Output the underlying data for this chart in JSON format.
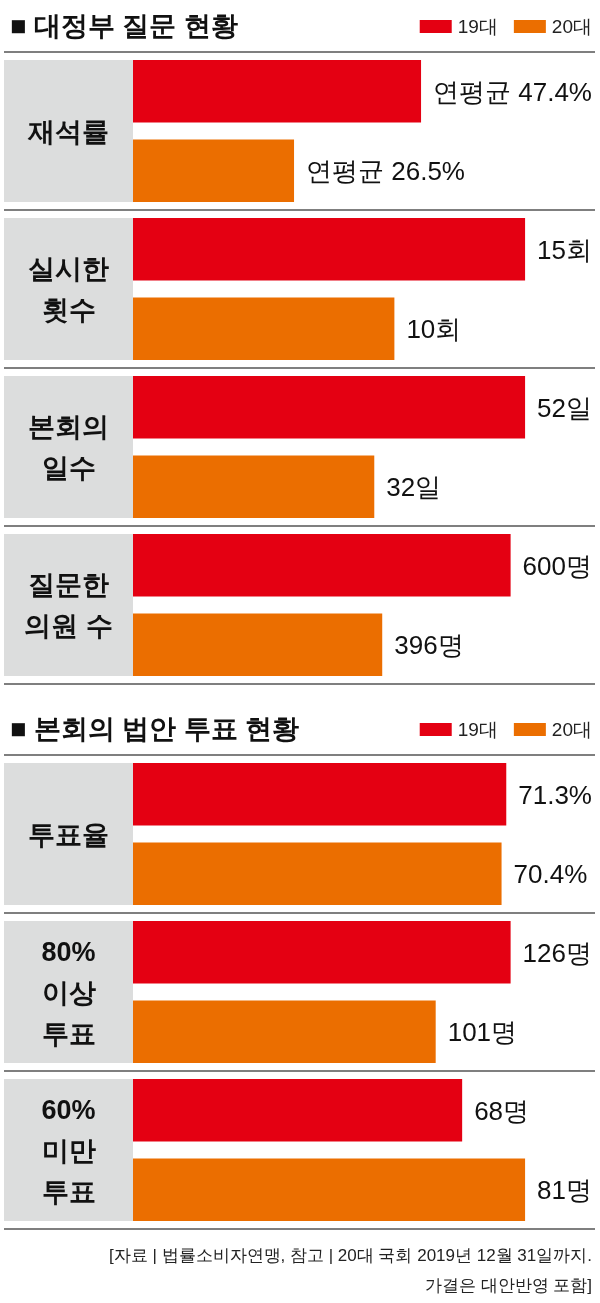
{
  "chart_data": [
    {
      "type": "bar",
      "orientation": "horizontal",
      "title": "■ 대정부 질문 현황",
      "legend": "top right",
      "categories": [
        "재석률"
      ],
      "series": [
        {
          "name": "19대",
          "color": "#e40012",
          "values": [
            47.4
          ],
          "value_labels": [
            "연평균 47.4%"
          ]
        },
        {
          "name": "20대",
          "color": "#eb6e00",
          "values": [
            26.5
          ],
          "value_labels": [
            "연평균 26.5%"
          ]
        }
      ]
    },
    {
      "type": "bar",
      "orientation": "horizontal",
      "categories": [
        "실시한\n횟수"
      ],
      "series": [
        {
          "color": "#e40012",
          "values": [
            15
          ],
          "value_labels": [
            "15회"
          ]
        },
        {
          "color": "#eb6e00",
          "values": [
            10
          ],
          "value_labels": [
            "10회"
          ]
        }
      ]
    },
    {
      "type": "bar",
      "orientation": "horizontal",
      "categories": [
        "본회의\n일수"
      ],
      "series": [
        {
          "color": "#e40012",
          "values": [
            52
          ],
          "value_labels": [
            "52일"
          ]
        },
        {
          "color": "#eb6e00",
          "values": [
            32
          ],
          "value_labels": [
            "32일"
          ]
        }
      ]
    },
    {
      "type": "bar",
      "orientation": "horizontal",
      "categories": [
        "질문한\n의원 수"
      ],
      "series": [
        {
          "color": "#e40012",
          "values": [
            600
          ],
          "value_labels": [
            "600명"
          ]
        },
        {
          "color": "#eb6e00",
          "values": [
            396
          ],
          "value_labels": [
            "396명"
          ]
        }
      ]
    },
    {
      "type": "bar",
      "orientation": "horizontal",
      "title": "■ 본회의 법안 투표 현황",
      "legend": "top right",
      "categories": [
        "투표율"
      ],
      "series": [
        {
          "name": "19대",
          "color": "#e40012",
          "values": [
            71.3
          ],
          "value_labels": [
            "71.3%"
          ]
        },
        {
          "name": "20대",
          "color": "#eb6e00",
          "values": [
            70.4
          ],
          "value_labels": [
            "70.4%"
          ]
        }
      ]
    },
    {
      "type": "bar",
      "orientation": "horizontal",
      "categories": [
        "80%\n이상\n투표"
      ],
      "series": [
        {
          "color": "#e40012",
          "values": [
            126
          ],
          "value_labels": [
            "126명"
          ]
        },
        {
          "color": "#eb6e00",
          "values": [
            101
          ],
          "value_labels": [
            "101명"
          ]
        }
      ]
    },
    {
      "type": "bar",
      "orientation": "horizontal",
      "categories": [
        "60%\n미만\n투표"
      ],
      "series": [
        {
          "color": "#e40012",
          "values": [
            68
          ],
          "value_labels": [
            "68명"
          ]
        },
        {
          "color": "#eb6e00",
          "values": [
            81
          ],
          "value_labels": [
            "81명"
          ]
        }
      ],
      "annotations": [
        "[자료 | 법률소비자연맹, 참고 | 20대 국회 2019년 12월 31일까지.\n가결은 대안반영 포함]"
      ]
    }
  ]
}
